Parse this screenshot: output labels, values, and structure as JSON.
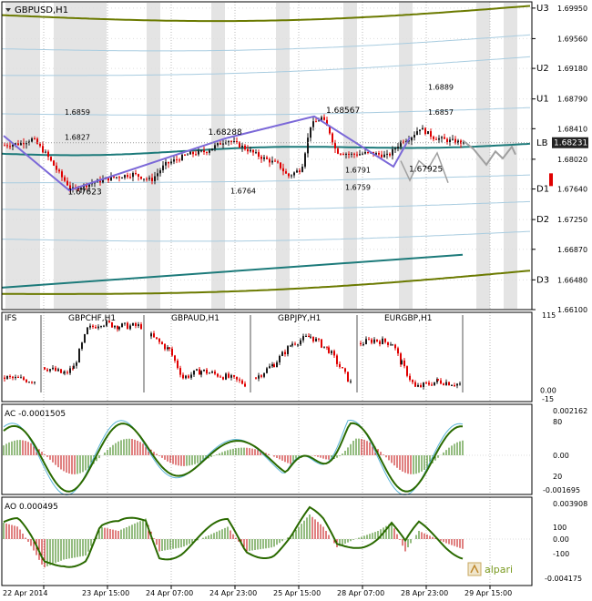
{
  "title": "GBPUSD,H1",
  "colors": {
    "bull": "#1a1a1a",
    "bear": "#e00000",
    "olive": "#6b7a00",
    "teal": "#1c7a7a",
    "lightblue": "#a8cce0",
    "zigzag": "#7b68d8",
    "forecast": "#a0a0a0",
    "sessionband": "#e4e4e4",
    "green": "#2a6a00"
  },
  "price_axis": {
    "ticks": [
      "1.69950",
      "1.69560",
      "1.69180",
      "1.68790",
      "1.68410",
      "1.68020",
      "1.67640",
      "1.67250",
      "1.66870",
      "1.66480",
      "1.66100"
    ],
    "current": "1.68231"
  },
  "levels": [
    {
      "label": "U3",
      "value": 1.6995
    },
    {
      "label": "U2",
      "value": 1.6918
    },
    {
      "label": "U1",
      "value": 1.6879
    },
    {
      "label": "LB",
      "value": 1.6823
    },
    {
      "label": "D1",
      "value": 1.6764
    },
    {
      "label": "D2",
      "value": 1.6725
    },
    {
      "label": "D3",
      "value": 1.6648
    }
  ],
  "annotations": [
    {
      "text": "1.6859",
      "x": 1.3,
      "y": 1.6859
    },
    {
      "text": "1.6827",
      "x": 1.3,
      "y": 1.6827
    },
    {
      "text": "1.67623",
      "x": 1.35,
      "y": 1.6757
    },
    {
      "text": "1.68288",
      "x": 3.55,
      "y": 1.6833
    },
    {
      "text": "1.6764",
      "x": 3.9,
      "y": 1.6758
    },
    {
      "text": "1.68567",
      "x": 5.4,
      "y": 1.6861
    },
    {
      "text": "1.6791",
      "x": 5.7,
      "y": 1.6785
    },
    {
      "text": "1.6759",
      "x": 5.7,
      "y": 1.6763
    },
    {
      "text": "1.6889",
      "x": 7.0,
      "y": 1.6891
    },
    {
      "text": "1.6857",
      "x": 7.0,
      "y": 1.6859
    },
    {
      "text": "1.67925",
      "x": 6.7,
      "y": 1.6786
    }
  ],
  "chart_data": [
    {
      "type": "candlestick",
      "title": "GBPUSD,H1",
      "x_ticks": [
        "22 Apr 2014",
        "23 Apr 15:00",
        "24 Apr 07:00",
        "24 Apr 23:00",
        "25 Apr 15:00",
        "28 Apr 07:00",
        "28 Apr 23:00",
        "29 Apr 15:00"
      ],
      "ylim": [
        1.661,
        1.7003
      ],
      "swing_points": [
        {
          "label": "1.67623",
          "value": 1.67623
        },
        {
          "label": "1.68288",
          "value": 1.68288
        },
        {
          "label": "1.68567",
          "value": 1.68567
        },
        {
          "label": "1.67925",
          "value": 1.67925
        }
      ],
      "current_price": 1.68231
    },
    {
      "type": "bar",
      "title": "IFS",
      "segments": [
        "GBPCHF,H1",
        "GBPAUD,H1",
        "GBPJPY,H1",
        "EURGBP,H1"
      ],
      "axis_labels": [
        "115",
        "0.00",
        "-15"
      ]
    },
    {
      "type": "bar",
      "title": "AC -0.0001505",
      "value": -0.0001505,
      "axis_labels": [
        "0.002162",
        "80",
        "0.00",
        "20",
        "-0.001695"
      ]
    },
    {
      "type": "bar",
      "title": "AO 0.000495",
      "value": 0.000495,
      "axis_labels": [
        "0.003908",
        "100",
        "0.00",
        "-100",
        "-0.004175"
      ]
    }
  ],
  "brand": "alpari"
}
